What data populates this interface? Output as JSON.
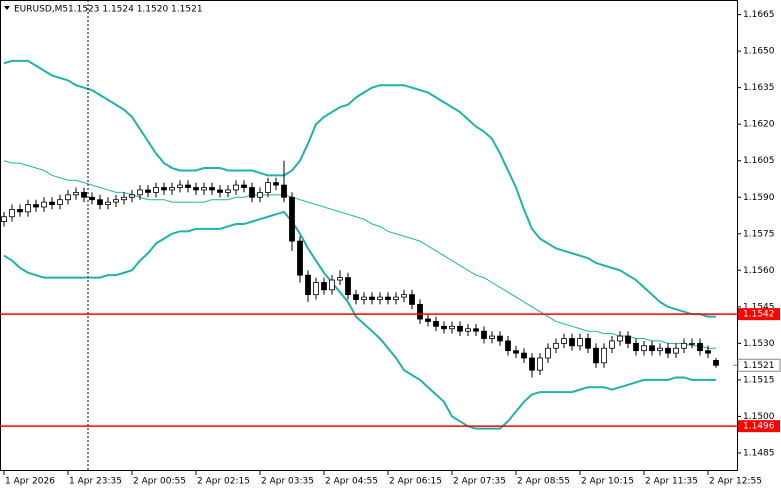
{
  "chart_data": {
    "type": "candlestick",
    "title": "EURUSD,M5",
    "subtitle": "1.1523 1.1524 1.1520 1.1521",
    "categories": [
      "1 Apr 2026",
      null,
      null,
      null,
      null,
      null,
      null,
      null,
      "1 Apr 23:35",
      null,
      null,
      null,
      null,
      null,
      null,
      null,
      "2 Apr 00:55",
      null,
      null,
      null,
      null,
      null,
      null,
      null,
      "2 Apr 02:15",
      null,
      null,
      null,
      null,
      null,
      null,
      null,
      "2 Apr 03:35",
      null,
      null,
      null,
      null,
      null,
      null,
      null,
      "2 Apr 04:55",
      null,
      null,
      null,
      null,
      null,
      null,
      null,
      "2 Apr 06:15",
      null,
      null,
      null,
      null,
      null,
      null,
      null,
      "2 Apr 07:35",
      null,
      null,
      null,
      null,
      null,
      null,
      null,
      "2 Apr 08:55",
      null,
      null,
      null,
      null,
      null,
      null,
      null,
      "2 Apr 10:15",
      null,
      null,
      null,
      null,
      null,
      null,
      null,
      "2 Apr 11:35",
      null,
      null,
      null,
      null,
      null,
      null,
      null,
      "2 Apr 12:55",
      null
    ],
    "open": [
      1.158,
      1.1582,
      1.1585,
      1.1584,
      1.1587,
      1.1586,
      1.1588,
      1.1587,
      1.1589,
      1.1591,
      1.1592,
      1.159,
      1.1589,
      1.1587,
      1.1588,
      1.1589,
      1.159,
      1.1591,
      1.1593,
      1.1592,
      1.1594,
      1.1593,
      1.1594,
      1.1595,
      1.1594,
      1.1593,
      1.1594,
      1.1593,
      1.1592,
      1.1593,
      1.1595,
      1.1594,
      1.159,
      1.1592,
      1.1596,
      1.1595,
      1.159,
      1.1572,
      1.1558,
      1.155,
      1.1555,
      1.1552,
      1.1556,
      1.1557,
      1.155,
      1.1548,
      1.1549,
      1.1548,
      1.1549,
      1.1548,
      1.1549,
      1.155,
      1.1546,
      1.154,
      1.1539,
      1.1537,
      1.1536,
      1.1537,
      1.1535,
      1.1536,
      1.1535,
      1.1532,
      1.1533,
      1.1531,
      1.1527,
      1.1526,
      1.1524,
      1.1519,
      1.1524,
      1.1528,
      1.153,
      1.1532,
      1.1529,
      1.1532,
      1.1528,
      1.1522,
      1.1528,
      1.1531,
      1.1533,
      1.153,
      1.1527,
      1.1529,
      1.1527,
      1.1528,
      1.1526,
      1.1528,
      1.153,
      1.153,
      1.1527,
      1.1523
    ],
    "high": [
      1.1584,
      1.1587,
      1.1587,
      1.1589,
      1.1589,
      1.159,
      1.159,
      1.1591,
      1.1593,
      1.1594,
      1.1594,
      1.1592,
      1.1591,
      1.159,
      1.1591,
      1.1592,
      1.1593,
      1.1595,
      1.1595,
      1.1596,
      1.1596,
      1.1596,
      1.1597,
      1.1597,
      1.1596,
      1.1596,
      1.1596,
      1.1595,
      1.1595,
      1.1597,
      1.1597,
      1.1596,
      1.1594,
      1.1598,
      1.1598,
      1.1605,
      1.1592,
      1.1574,
      1.156,
      1.1557,
      1.1557,
      1.1558,
      1.156,
      1.1559,
      1.1552,
      1.1551,
      1.1551,
      1.1551,
      1.1551,
      1.1551,
      1.1552,
      1.1552,
      1.1548,
      1.1542,
      1.1541,
      1.1539,
      1.1539,
      1.1539,
      1.1538,
      1.1538,
      1.1537,
      1.1535,
      1.1535,
      1.1533,
      1.1529,
      1.1528,
      1.1526,
      1.1526,
      1.153,
      1.1532,
      1.1534,
      1.1534,
      1.1534,
      1.1534,
      1.153,
      1.153,
      1.1533,
      1.1535,
      1.1535,
      1.1532,
      1.1531,
      1.1531,
      1.153,
      1.153,
      1.153,
      1.1532,
      1.1532,
      1.1532,
      1.1529,
      1.1524
    ],
    "low": [
      1.1578,
      1.158,
      1.1582,
      1.1582,
      1.1584,
      1.1584,
      1.1585,
      1.1585,
      1.1587,
      1.1589,
      1.1588,
      1.1587,
      1.1585,
      1.1585,
      1.1586,
      1.1587,
      1.1588,
      1.1589,
      1.159,
      1.159,
      1.1591,
      1.1591,
      1.1592,
      1.1592,
      1.1591,
      1.1591,
      1.1591,
      1.159,
      1.159,
      1.1591,
      1.1592,
      1.1588,
      1.1588,
      1.159,
      1.1593,
      1.1588,
      1.1568,
      1.1555,
      1.1547,
      1.1548,
      1.155,
      1.155,
      1.1554,
      1.1548,
      1.1546,
      1.1546,
      1.1546,
      1.1546,
      1.1546,
      1.1546,
      1.1547,
      1.1544,
      1.1538,
      1.1537,
      1.1535,
      1.1534,
      1.1534,
      1.1533,
      1.1533,
      1.1533,
      1.153,
      1.153,
      1.1529,
      1.1525,
      1.1524,
      1.1522,
      1.1516,
      1.1517,
      1.1522,
      1.1526,
      1.1528,
      1.1527,
      1.1527,
      1.1526,
      1.152,
      1.152,
      1.1526,
      1.1529,
      1.1528,
      1.1525,
      1.1525,
      1.1525,
      1.1525,
      1.1524,
      1.1524,
      1.1526,
      1.1528,
      1.1525,
      1.1524,
      1.152
    ],
    "close": [
      1.1582,
      1.1585,
      1.1584,
      1.1587,
      1.1586,
      1.1588,
      1.1587,
      1.1589,
      1.1591,
      1.1592,
      1.159,
      1.1589,
      1.1587,
      1.1588,
      1.1589,
      1.159,
      1.1591,
      1.1593,
      1.1592,
      1.1594,
      1.1593,
      1.1594,
      1.1595,
      1.1594,
      1.1593,
      1.1594,
      1.1593,
      1.1592,
      1.1593,
      1.1595,
      1.1594,
      1.159,
      1.1592,
      1.1596,
      1.1595,
      1.159,
      1.1572,
      1.1558,
      1.155,
      1.1555,
      1.1552,
      1.1556,
      1.1557,
      1.155,
      1.1548,
      1.1549,
      1.1548,
      1.1549,
      1.1548,
      1.1549,
      1.155,
      1.1546,
      1.154,
      1.1539,
      1.1537,
      1.1536,
      1.1537,
      1.1535,
      1.1536,
      1.1535,
      1.1532,
      1.1533,
      1.1531,
      1.1527,
      1.1526,
      1.1524,
      1.1519,
      1.1524,
      1.1528,
      1.153,
      1.1532,
      1.1529,
      1.1532,
      1.1528,
      1.1522,
      1.1528,
      1.1531,
      1.1533,
      1.153,
      1.1527,
      1.1529,
      1.1527,
      1.1528,
      1.1526,
      1.1528,
      1.153,
      1.153,
      1.1527,
      1.1526,
      1.1521
    ],
    "up_color": "#ffffff",
    "down_color": "#000000",
    "bands": {
      "color": "#20b2aa",
      "upper": [
        1.1645,
        1.1646,
        1.1646,
        1.1646,
        1.1644,
        1.1642,
        1.164,
        1.1639,
        1.1638,
        1.1636,
        1.1635,
        1.1634,
        1.1632,
        1.163,
        1.1628,
        1.1626,
        1.1623,
        1.1618,
        1.1613,
        1.1608,
        1.1604,
        1.1602,
        1.1601,
        1.1601,
        1.1601,
        1.1602,
        1.1602,
        1.1602,
        1.1601,
        1.1601,
        1.1601,
        1.1601,
        1.16,
        1.1599,
        1.1599,
        1.1599,
        1.1601,
        1.1605,
        1.1612,
        1.162,
        1.1623,
        1.1625,
        1.1627,
        1.1628,
        1.1631,
        1.1633,
        1.1635,
        1.1636,
        1.1636,
        1.1636,
        1.1636,
        1.1635,
        1.1634,
        1.1633,
        1.1631,
        1.1629,
        1.1627,
        1.1625,
        1.1622,
        1.1619,
        1.1617,
        1.1614,
        1.1608,
        1.1601,
        1.1594,
        1.1585,
        1.1577,
        1.1573,
        1.1571,
        1.1569,
        1.1568,
        1.1567,
        1.1566,
        1.1565,
        1.1563,
        1.1562,
        1.1561,
        1.156,
        1.1558,
        1.1556,
        1.1553,
        1.155,
        1.1547,
        1.1545,
        1.1544,
        1.1543,
        1.1542,
        1.1542,
        1.1541,
        1.1541
      ],
      "middle": [
        1.1605,
        1.1604,
        1.1604,
        1.1603,
        1.1602,
        1.1601,
        1.1599,
        1.1598,
        1.1597,
        1.1597,
        1.1596,
        1.1595,
        1.1594,
        1.1593,
        1.1592,
        1.1592,
        1.1591,
        1.159,
        1.1589,
        1.1589,
        1.1589,
        1.1588,
        1.1588,
        1.1588,
        1.1588,
        1.1588,
        1.1589,
        1.1589,
        1.1589,
        1.159,
        1.159,
        1.1591,
        1.1591,
        1.1591,
        1.1591,
        1.1591,
        1.159,
        1.1589,
        1.1588,
        1.1587,
        1.1586,
        1.1585,
        1.1584,
        1.1583,
        1.1582,
        1.1581,
        1.1579,
        1.1578,
        1.1576,
        1.1575,
        1.1574,
        1.1573,
        1.1572,
        1.157,
        1.1568,
        1.1566,
        1.1564,
        1.1562,
        1.156,
        1.1558,
        1.1557,
        1.1555,
        1.1553,
        1.1551,
        1.1549,
        1.1547,
        1.1545,
        1.1543,
        1.1541,
        1.1539,
        1.1538,
        1.1537,
        1.1536,
        1.1535,
        1.1535,
        1.1534,
        1.1534,
        1.1533,
        1.1533,
        1.1532,
        1.1532,
        1.1531,
        1.1531,
        1.153,
        1.153,
        1.153,
        1.1529,
        1.1529,
        1.1528,
        1.1528
      ],
      "lower": [
        1.1566,
        1.1564,
        1.1561,
        1.1559,
        1.1558,
        1.1557,
        1.1557,
        1.1557,
        1.1557,
        1.1557,
        1.1557,
        1.1557,
        1.1557,
        1.1558,
        1.1558,
        1.1559,
        1.156,
        1.1564,
        1.1567,
        1.1571,
        1.1573,
        1.1575,
        1.1576,
        1.1576,
        1.1577,
        1.1577,
        1.1577,
        1.1577,
        1.1578,
        1.1579,
        1.1579,
        1.158,
        1.1581,
        1.1582,
        1.1583,
        1.1584,
        1.158,
        1.1575,
        1.1569,
        1.1564,
        1.1559,
        1.1555,
        1.1551,
        1.1547,
        1.1541,
        1.1538,
        1.1535,
        1.1532,
        1.1528,
        1.1524,
        1.1519,
        1.1517,
        1.1515,
        1.1512,
        1.1509,
        1.1506,
        1.15,
        1.1498,
        1.1496,
        1.1495,
        1.1495,
        1.1495,
        1.1495,
        1.1498,
        1.1502,
        1.1506,
        1.1509,
        1.151,
        1.151,
        1.151,
        1.151,
        1.151,
        1.1511,
        1.1512,
        1.1512,
        1.1512,
        1.1511,
        1.1512,
        1.1513,
        1.1514,
        1.1515,
        1.1515,
        1.1515,
        1.1515,
        1.1516,
        1.1516,
        1.1515,
        1.1515,
        1.1515,
        1.1515
      ]
    },
    "hlines": [
      {
        "value": 1.1542,
        "color": "#ff0000"
      },
      {
        "value": 1.1496,
        "color": "#ff0000"
      }
    ],
    "ylim": [
      1.1478,
      1.1671
    ],
    "yticks": [
      1.1485,
      {
        "value": 1.15,
        "label": "1.1500"
      },
      1.1515,
      {
        "value": 1.153,
        "label": "1.1530"
      },
      1.1545,
      {
        "value": 1.156,
        "label": "1.1560"
      },
      1.1575,
      {
        "value": 1.159,
        "label": "1.1590"
      },
      1.1605,
      {
        "value": 1.162,
        "label": "1.1620"
      },
      1.1635,
      {
        "value": 1.165,
        "label": "1.1650"
      },
      1.1665
    ]
  }
}
